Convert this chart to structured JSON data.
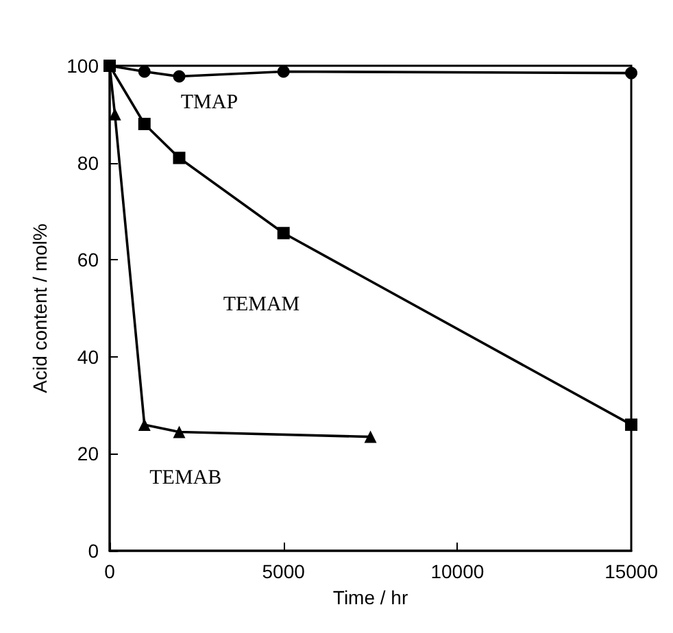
{
  "chart_data": {
    "type": "line",
    "xlabel": "Time / hr",
    "ylabel": "Acid content / mol%",
    "xlim": [
      0,
      15000
    ],
    "xticks": [
      0,
      5000,
      10000,
      15000
    ],
    "ylim": [
      0,
      100
    ],
    "yticks": [
      0,
      20,
      40,
      60,
      80,
      100
    ],
    "grid": false,
    "legend": false,
    "line_style": "solid",
    "series": [
      {
        "name": "TMAP",
        "color": "#000000",
        "marker": "circle",
        "x": [
          0,
          1000,
          2000,
          5000,
          15000
        ],
        "values": [
          100,
          98.8,
          97.8,
          98.8,
          98.5
        ]
      },
      {
        "name": "TEMAM",
        "color": "#000000",
        "marker": "square",
        "x": [
          0,
          1000,
          2000,
          5000,
          15000
        ],
        "values": [
          100,
          88,
          81,
          65.5,
          26
        ]
      },
      {
        "name": "TEMAB",
        "color": "#000000",
        "marker": "triangle",
        "x": [
          0,
          150,
          1000,
          2000,
          7500
        ],
        "values": [
          100,
          90,
          26,
          24.5,
          23.5
        ]
      }
    ]
  }
}
